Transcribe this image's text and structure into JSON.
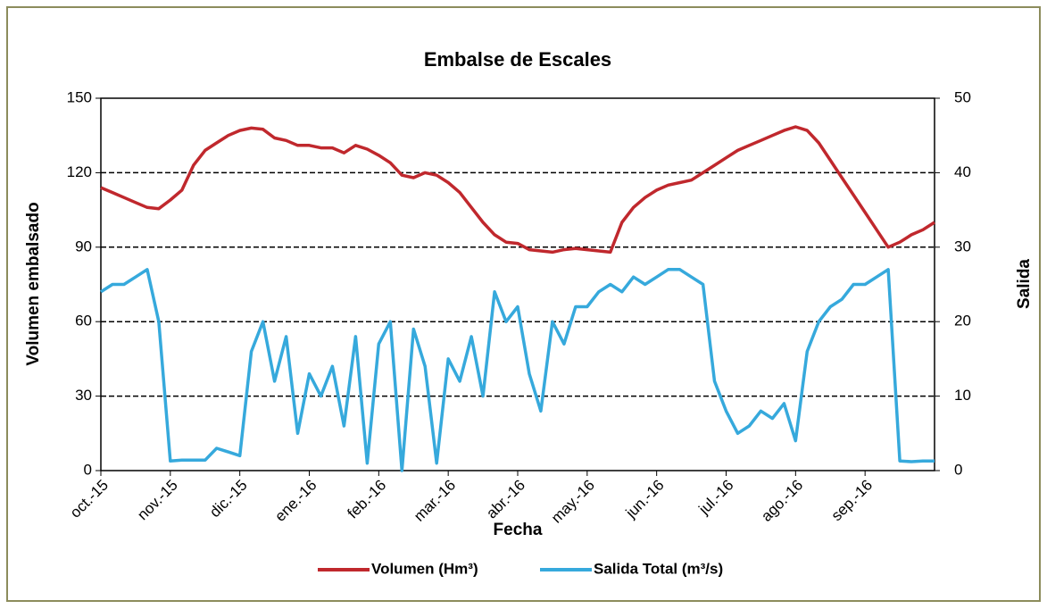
{
  "chart_data": {
    "type": "line",
    "title": "Embalse de Escales",
    "xlabel": "Fecha",
    "ylabel": "Volumen embalsado",
    "y2label": "Salida",
    "categories": [
      "oct.-15",
      null,
      null,
      null,
      null,
      null,
      "nov.-15",
      null,
      null,
      null,
      null,
      null,
      "dic.-15",
      null,
      null,
      null,
      null,
      null,
      "ene.-16",
      null,
      null,
      null,
      null,
      null,
      "feb.-16",
      null,
      null,
      null,
      null,
      null,
      "mar.-16",
      null,
      null,
      null,
      null,
      null,
      "abr.-16",
      null,
      null,
      null,
      null,
      null,
      "may.-16",
      null,
      null,
      null,
      null,
      null,
      "jun.-16",
      null,
      null,
      null,
      null,
      null,
      "jul.-16",
      null,
      null,
      null,
      null,
      null,
      "ago.-16",
      null,
      null,
      null,
      null,
      null,
      "sep.-16",
      null,
      null,
      null,
      null,
      null,
      null
    ],
    "series": [
      {
        "name": "Volumen (Hm³)",
        "color": "#c0282d",
        "axis": "y",
        "values": [
          114,
          112,
          110,
          108,
          106,
          105.5,
          109,
          113,
          123,
          129,
          132,
          135,
          137,
          138,
          137.5,
          134,
          133,
          131,
          131,
          130,
          130,
          128,
          131,
          129.5,
          127,
          124,
          119,
          118,
          120,
          119,
          116,
          112,
          106,
          100,
          95,
          92,
          91.5,
          89,
          88.5,
          88,
          89,
          89.5,
          89,
          88.5,
          88,
          100,
          106,
          110,
          113,
          115,
          116,
          117,
          120,
          123,
          126,
          129,
          131,
          133,
          135,
          137,
          138.5,
          137,
          132,
          125,
          118,
          111,
          104,
          97,
          90,
          92,
          95,
          97,
          100
        ]
      },
      {
        "name": "Salida Total (m³/s)",
        "color": "#36a9dc",
        "axis": "y2",
        "values": [
          24,
          25,
          25,
          26,
          27,
          20,
          1.3,
          1.4,
          1.4,
          1.4,
          3,
          2.5,
          2,
          16,
          20,
          12,
          18,
          5,
          13,
          10,
          14,
          6,
          18,
          1,
          17,
          20,
          0,
          19,
          14,
          1,
          15,
          12,
          18,
          10,
          24,
          20,
          22,
          13,
          8,
          20,
          17,
          22,
          22,
          24,
          25,
          24,
          26,
          25,
          26,
          27,
          27,
          26,
          25,
          12,
          8,
          5,
          6,
          8,
          7,
          9,
          4,
          16,
          20,
          22,
          23,
          25,
          25,
          26,
          27,
          1.3,
          1.2,
          1.3,
          1.3
        ]
      }
    ],
    "ylim": [
      0,
      150
    ],
    "yticks": [
      0,
      30,
      60,
      90,
      120,
      150
    ],
    "y2lim": [
      0,
      50
    ],
    "y2ticks": [
      0,
      10,
      20,
      30,
      40,
      50
    ],
    "grid": true,
    "legend": "bottom"
  }
}
